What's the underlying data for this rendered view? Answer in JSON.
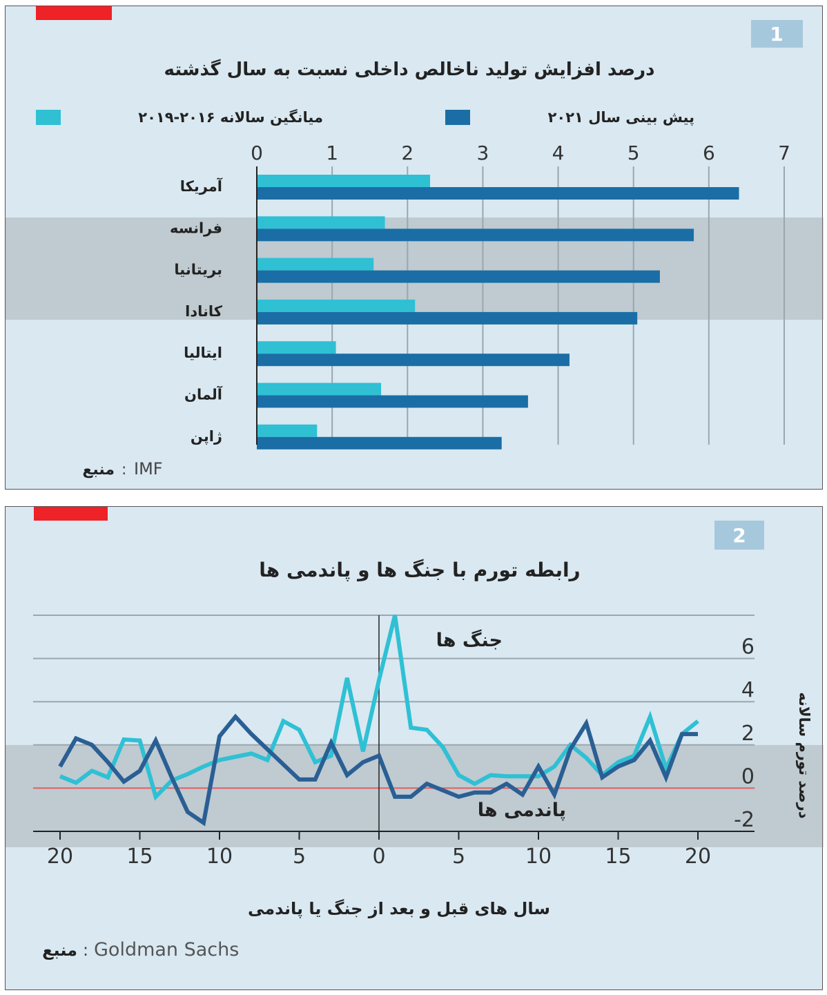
{
  "colors": {
    "background": "#d9e8f1",
    "accent_red": "#ee2227",
    "badge": "#a6c8dc",
    "cyan": "#2fc0d4",
    "dark_blue": "#1a6ea5",
    "zero_line": "#e06060",
    "grid": "#9aa7b0"
  },
  "chart_data": [
    {
      "type": "bar",
      "orientation": "horizontal",
      "badge": "1",
      "title": "درصد افزایش تولید ناخالص داخلی نسبت به سال گذشته",
      "categories": [
        "آمریکا",
        "فرانسه",
        "بریتانیا",
        "کانادا",
        "ایتالیا",
        "آلمان",
        "ژاپن"
      ],
      "series": [
        {
          "name": "میانگین سالانه ۲۰۱۶-۲۰۱۹",
          "color": "#2fc0d4",
          "values": [
            2.3,
            1.7,
            1.55,
            2.1,
            1.05,
            1.65,
            0.8
          ]
        },
        {
          "name": "پیش بینی سال ۲۰۲۱",
          "color": "#1a6ea5",
          "values": [
            6.4,
            5.8,
            5.35,
            5.05,
            4.15,
            3.6,
            3.25
          ]
        }
      ],
      "xlim": [
        0,
        7
      ],
      "xticks": [
        "0",
        "1",
        "2",
        "3",
        "4",
        "5",
        "6",
        "7"
      ],
      "grid": true,
      "legend": "top",
      "source_label": "منبع",
      "source": "IMF"
    },
    {
      "type": "line",
      "badge": "2",
      "title": "رابطه تورم با جنگ ها و پاندمی ها",
      "xlabel": "سال های قبل و بعد از جنگ یا پاندمی",
      "ylabel": "درصد تورم سالانه",
      "x": [
        -20,
        -19,
        -18,
        -17,
        -16,
        -15,
        -14,
        -13,
        -12,
        -11,
        -10,
        -9,
        -8,
        -7,
        -6,
        -5,
        -4,
        -3,
        -2,
        -1,
        0,
        1,
        2,
        3,
        4,
        5,
        6,
        7,
        8,
        9,
        10,
        11,
        12,
        13,
        14,
        15,
        16,
        17,
        18,
        19,
        20
      ],
      "xticks": [
        "20",
        "15",
        "10",
        "5",
        "0",
        "5",
        "10",
        "15",
        "20"
      ],
      "yticks": [
        "6",
        "4",
        "2",
        "0",
        "-2"
      ],
      "ylim": [
        -2,
        8
      ],
      "grid": true,
      "series": [
        {
          "name": "جنگ ها",
          "color": "#2fc0d4",
          "values": [
            0.55,
            0.25,
            0.8,
            0.5,
            2.25,
            2.2,
            -0.4,
            0.35,
            0.65,
            1.0,
            1.3,
            1.45,
            1.6,
            1.3,
            3.1,
            2.7,
            1.2,
            1.5,
            5.1,
            1.7,
            5.0,
            8.0,
            2.8,
            2.7,
            1.9,
            0.6,
            0.2,
            0.6,
            0.55,
            0.55,
            0.55,
            1.0,
            2.0,
            1.4,
            0.6,
            1.2,
            1.5,
            3.3,
            0.9,
            2.5,
            3.1
          ]
        },
        {
          "name": "پاندمی ها",
          "color": "#2a5f94",
          "values": [
            1.0,
            2.3,
            2.0,
            1.2,
            0.3,
            0.8,
            2.2,
            0.5,
            -1.1,
            -1.6,
            2.4,
            3.3,
            2.5,
            1.8,
            1.1,
            0.4,
            0.4,
            2.1,
            0.6,
            1.2,
            1.5,
            -0.4,
            -0.4,
            0.2,
            -0.1,
            -0.4,
            -0.2,
            -0.2,
            0.2,
            -0.3,
            1.0,
            -0.3,
            1.8,
            3.0,
            0.5,
            1.0,
            1.3,
            2.2,
            0.5,
            2.5,
            2.5
          ]
        }
      ],
      "source_label": "منبع",
      "source": "Goldman Sachs"
    }
  ]
}
